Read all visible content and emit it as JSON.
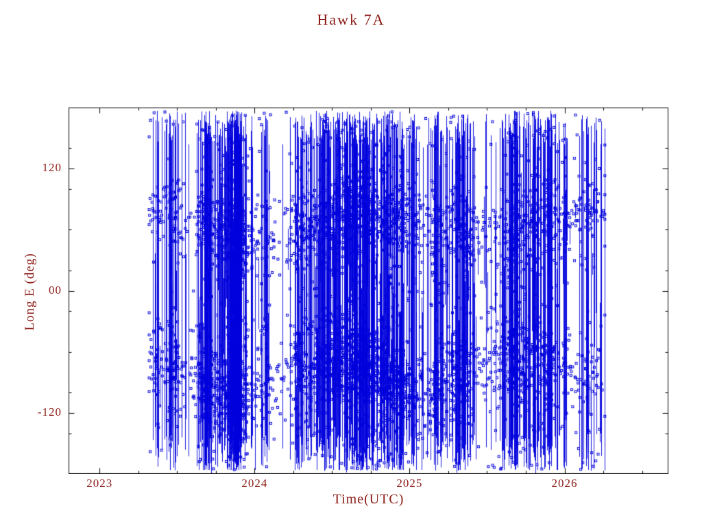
{
  "colors": {
    "text": "#8b1a14",
    "axis": "#000000",
    "data": "#0000dd",
    "background": "#ffffff"
  },
  "chart_data": {
    "type": "scatter",
    "title": "Hawk 7A",
    "xlabel": "Time(UTC)",
    "ylabel": "Long E (deg)",
    "xlim": [
      2022.8,
      2026.67
    ],
    "ylim": [
      -180,
      180
    ],
    "x_ticks": [
      {
        "value": 2023,
        "label": "2023"
      },
      {
        "value": 2024,
        "label": "2024"
      },
      {
        "value": 2025,
        "label": "2025"
      },
      {
        "value": 2026,
        "label": "2026"
      }
    ],
    "y_ticks": [
      {
        "value": 120,
        "label": "120"
      },
      {
        "value": 0,
        "label": "00"
      },
      {
        "value": -120,
        "label": "-120"
      }
    ],
    "x_minor_step": 0.25,
    "y_minor_step": 40,
    "grid": false,
    "legend": "none",
    "marker": "open-square",
    "data_time_span": [
      2023.32,
      2026.26
    ],
    "description": "Dense geodetic longitude history: thousands of blue points connected by near-vertical wrap-around lines between -180 and +180 deg, with dense marker bands near +65 deg and -85 deg drifting over time.",
    "synthesis": {
      "seed": 1337,
      "clusters": 44,
      "cluster_sigma_range": [
        0.012,
        0.07
      ],
      "lines_per_cluster_range": [
        8,
        40
      ],
      "full_span_line_fraction": 0.55,
      "marker_count": 5200,
      "marker_size": 3,
      "marker_bands": [
        {
          "center": 66,
          "std": 20,
          "drift_amp": 14,
          "drift_period": 1.4,
          "weight": 0.3
        },
        {
          "center": -84,
          "std": 22,
          "drift_amp": 16,
          "drift_period": 1.2,
          "weight": 0.43
        },
        {
          "center": 0,
          "std": 0,
          "uniform": [
            -176,
            176
          ],
          "weight": 0.27
        }
      ]
    }
  }
}
